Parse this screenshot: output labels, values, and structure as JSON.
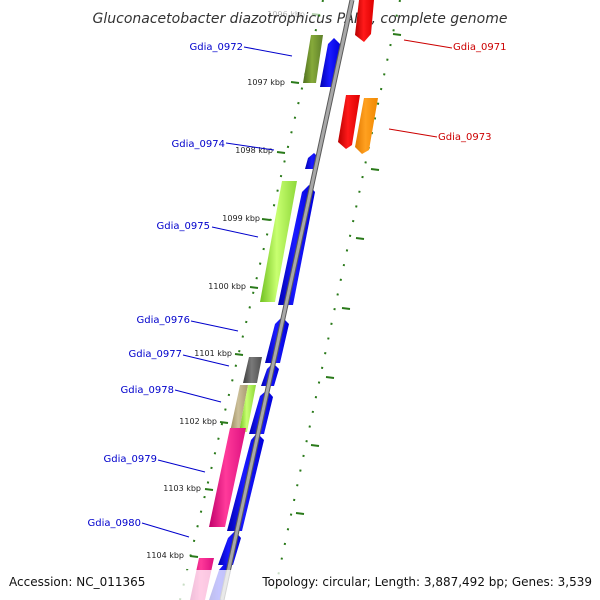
{
  "title": "Gluconacetobacter diazotrophicus PAI 5, complete genome",
  "footer": {
    "accession": "Accession: NC_011365",
    "summary": "Topology: circular; Length: 3,887,492 bp; Genes: 3,539"
  },
  "colors": {
    "forward_label": "#0000cc",
    "reverse_label": "#cc0000",
    "axis": "#888888",
    "tick": "#2a7a1a"
  },
  "ticks": [
    {
      "label": "1096 kbp",
      "faded": true
    },
    {
      "label": "1097 kbp"
    },
    {
      "label": "1098 kbp"
    },
    {
      "label": "1099 kbp"
    },
    {
      "label": "1100 kbp"
    },
    {
      "label": "1101 kbp"
    },
    {
      "label": "1102 kbp"
    },
    {
      "label": "1103 kbp"
    },
    {
      "label": "1104 kbp"
    }
  ],
  "genes": [
    {
      "label": "Gdia_0971",
      "strand": "reverse"
    },
    {
      "label": "Gdia_0972",
      "strand": "forward"
    },
    {
      "label": "Gdia_0973",
      "strand": "reverse"
    },
    {
      "label": "Gdia_0974",
      "strand": "forward"
    },
    {
      "label": "Gdia_0975",
      "strand": "forward"
    },
    {
      "label": "Gdia_0976",
      "strand": "forward"
    },
    {
      "label": "Gdia_0977",
      "strand": "forward"
    },
    {
      "label": "Gdia_0978",
      "strand": "forward"
    },
    {
      "label": "Gdia_0979",
      "strand": "forward"
    },
    {
      "label": "Gdia_0980",
      "strand": "forward"
    }
  ]
}
